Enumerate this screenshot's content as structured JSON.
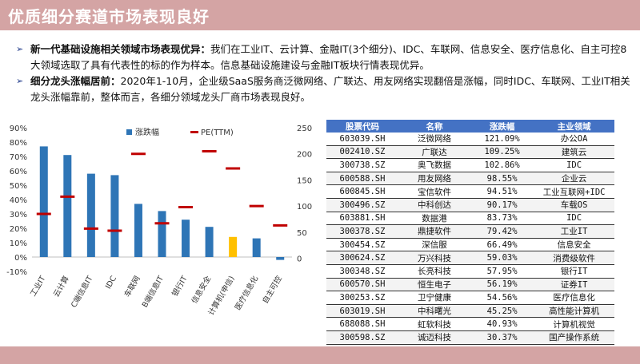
{
  "header": {
    "title": "优质细分赛道市场表现良好"
  },
  "bullets": [
    {
      "lead": "新一代基础设施相关领域市场表现优异：",
      "text": "我们在工业IT、云计算、金融IT(3个细分)、IDC、车联网、信息安全、医疗信息化、自主可控8大领域选取了具有代表性的标的作为样本。信息基础设施建设与金融IT板块行情表现优异。"
    },
    {
      "lead": "细分龙头涨幅居前：",
      "text": "2020年1-10月，企业级SaaS服务商泛微网络、广联达、用友网络实现翻倍是涨幅，同时IDC、车联网、工业IT相关龙头涨幅靠前，整体而言，各细分领域龙头厂商市场表现良好。"
    }
  ],
  "chart_data": {
    "type": "bar",
    "categories": [
      "工业IT",
      "云计算",
      "C端信息IT",
      "IDC",
      "车联网",
      "B端信息IT",
      "银行IT",
      "信息安全",
      "计算机(申信)",
      "医疗信息化",
      "自主可控"
    ],
    "series": [
      {
        "name": "涨跌幅",
        "type": "bar",
        "axis": "left",
        "values": [
          77,
          71,
          58,
          57,
          37,
          32,
          26,
          21,
          14,
          13,
          -2
        ]
      },
      {
        "name": "PE(TTM)",
        "type": "marker",
        "axis": "right",
        "values": [
          85,
          118,
          57,
          53,
          200,
          67,
          98,
          205,
          172,
          100,
          63
        ]
      }
    ],
    "highlight_index": 8,
    "y_left": {
      "ylim": [
        -10,
        90
      ],
      "ticks": [
        "-10%",
        "0%",
        "10%",
        "20%",
        "30%",
        "40%",
        "50%",
        "60%",
        "70%",
        "80%",
        "90%"
      ]
    },
    "y_right": {
      "ylim": [
        -25,
        250
      ],
      "ticks": [
        "0",
        "50",
        "100",
        "150",
        "200",
        "250"
      ]
    },
    "legend": "top",
    "colors": {
      "bar": "#2e75b6",
      "highlight": "#ffc000",
      "marker": "#c00000"
    }
  },
  "table": {
    "headers": [
      "股票代码",
      "名称",
      "涨跌幅",
      "主业领域"
    ],
    "rows": [
      [
        "603039.SH",
        "泛微网络",
        "121.09%",
        "办公OA"
      ],
      [
        "002410.SZ",
        "广联达",
        "109.25%",
        "建筑云"
      ],
      [
        "300738.SZ",
        "奥飞数据",
        "102.86%",
        "IDC"
      ],
      [
        "600588.SH",
        "用友网络",
        "98.55%",
        "企业云"
      ],
      [
        "600845.SH",
        "宝信软件",
        "94.51%",
        "工业互联网+IDC"
      ],
      [
        "300496.SZ",
        "中科创达",
        "90.17%",
        "车载OS"
      ],
      [
        "603881.SH",
        "数据港",
        "83.73%",
        "IDC"
      ],
      [
        "300378.SZ",
        "鼎捷软件",
        "79.42%",
        "工业IT"
      ],
      [
        "300454.SZ",
        "深信服",
        "66.49%",
        "信息安全"
      ],
      [
        "300624.SZ",
        "万兴科技",
        "59.03%",
        "消费级软件"
      ],
      [
        "300348.SZ",
        "长亮科技",
        "57.95%",
        "银行IT"
      ],
      [
        "600570.SH",
        "恒生电子",
        "56.19%",
        "证券IT"
      ],
      [
        "300253.SZ",
        "卫宁健康",
        "54.56%",
        "医疗信息化"
      ],
      [
        "603019.SH",
        "中科曙光",
        "45.25%",
        "高性能计算机"
      ],
      [
        "688088.SH",
        "虹软科技",
        "40.93%",
        "计算机视觉"
      ],
      [
        "300598.SZ",
        "诚迈科技",
        "30.37%",
        "国产操作系统"
      ]
    ]
  }
}
